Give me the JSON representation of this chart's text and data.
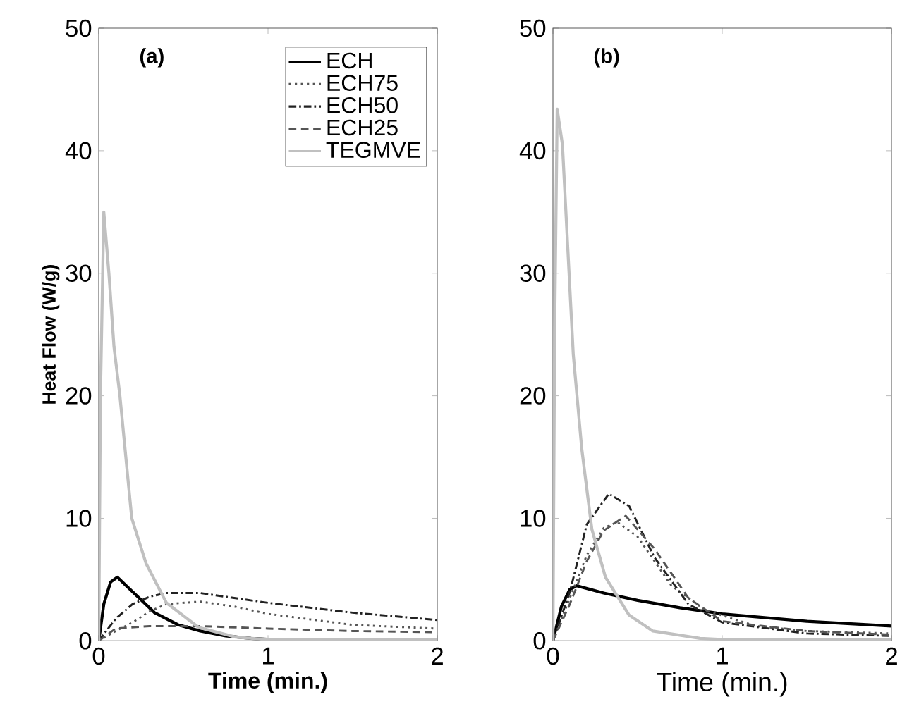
{
  "chart_data": [
    {
      "type": "line",
      "title": "(a)",
      "xlabel": "Time (min.)",
      "ylabel": "Heat Flow (W/g)",
      "xlim": [
        0,
        2
      ],
      "ylim": [
        0,
        50
      ],
      "xticks": [
        0,
        1,
        2
      ],
      "yticks": [
        0,
        10,
        20,
        30,
        40,
        50
      ],
      "legend": "top right",
      "grid": false,
      "series": [
        {
          "name": "ECH",
          "color": "#000000",
          "line_style": "solid",
          "x": [
            0,
            0.03,
            0.07,
            0.11,
            0.2,
            0.33,
            0.47,
            0.6,
            0.75,
            0.9,
            1.03,
            1.5,
            2.0
          ],
          "values": [
            0,
            3.0,
            4.8,
            5.2,
            4.0,
            2.3,
            1.3,
            0.8,
            0.4,
            0.2,
            0.1,
            0.1,
            0.1
          ]
        },
        {
          "name": "ECH75",
          "color": "#555555",
          "line_style": "dotted",
          "x": [
            0,
            0.1,
            0.2,
            0.3,
            0.4,
            0.6,
            0.8,
            1.0,
            1.5,
            2.0
          ],
          "values": [
            0,
            0.8,
            1.5,
            2.4,
            3.0,
            3.2,
            2.8,
            2.2,
            1.3,
            1.0
          ]
        },
        {
          "name": "ECH50",
          "color": "#222222",
          "line_style": "dashdot",
          "x": [
            0,
            0.1,
            0.2,
            0.3,
            0.4,
            0.6,
            0.8,
            1.0,
            1.5,
            2.0
          ],
          "values": [
            0,
            1.8,
            3.0,
            3.6,
            3.9,
            3.9,
            3.5,
            3.1,
            2.3,
            1.7
          ]
        },
        {
          "name": "ECH25",
          "color": "#555555",
          "line_style": "dashed",
          "x": [
            0,
            0.1,
            0.3,
            0.6,
            1.0,
            1.5,
            2.0
          ],
          "values": [
            0,
            1.0,
            1.2,
            1.2,
            1.0,
            0.8,
            0.7
          ]
        },
        {
          "name": "TEGMVE",
          "color": "#c0c0c0",
          "line_style": "solid",
          "x": [
            0,
            0.01,
            0.03,
            0.06,
            0.09,
            0.125,
            0.195,
            0.28,
            0.4,
            0.59,
            0.81,
            1.0,
            2.0
          ],
          "values": [
            0,
            20,
            35,
            30,
            24,
            20,
            10,
            6.3,
            3.1,
            1.1,
            0.3,
            0.1,
            0.1
          ]
        }
      ]
    },
    {
      "type": "line",
      "title": "(b)",
      "xlabel": "Time (min.)",
      "xlim": [
        0,
        2
      ],
      "ylim": [
        0,
        50
      ],
      "xticks": [
        0,
        1,
        2
      ],
      "yticks": [
        0,
        10,
        20,
        30,
        40,
        50
      ],
      "grid": false,
      "series": [
        {
          "color": "#000000",
          "line_style": "solid",
          "x": [
            0,
            0.05,
            0.1,
            0.14,
            0.3,
            0.5,
            0.75,
            1.0,
            1.5,
            2.0
          ],
          "values": [
            0,
            2.8,
            4.2,
            4.5,
            3.9,
            3.3,
            2.7,
            2.2,
            1.6,
            1.2
          ]
        },
        {
          "color": "#555555",
          "line_style": "dotted",
          "x": [
            0,
            0.1,
            0.2,
            0.3,
            0.38,
            0.5,
            0.7,
            0.9,
            1.2,
            1.5,
            2.0
          ],
          "values": [
            0,
            3.5,
            7.0,
            9.2,
            9.7,
            8.5,
            4.5,
            2.5,
            1.2,
            0.8,
            0.6
          ]
        },
        {
          "color": "#222222",
          "line_style": "dashdot",
          "x": [
            0,
            0.1,
            0.2,
            0.33,
            0.45,
            0.6,
            0.8,
            1.0,
            1.5,
            2.0
          ],
          "values": [
            0,
            4.0,
            9.5,
            12.0,
            11.0,
            6.8,
            3.0,
            1.5,
            0.6,
            0.4
          ]
        },
        {
          "color": "#555555",
          "line_style": "dashed",
          "x": [
            0,
            0.1,
            0.2,
            0.3,
            0.43,
            0.6,
            0.8,
            1.0,
            1.5,
            2.0
          ],
          "values": [
            0,
            3.0,
            6.5,
            9.0,
            10.2,
            7.5,
            3.5,
            1.6,
            0.8,
            0.5
          ]
        },
        {
          "color": "#c0c0c0",
          "line_style": "solid",
          "x": [
            0,
            0.01,
            0.025,
            0.056,
            0.12,
            0.17,
            0.23,
            0.31,
            0.45,
            0.59,
            0.87,
            1.0,
            2.0
          ],
          "values": [
            0,
            25,
            43.4,
            40.5,
            23.4,
            15.7,
            9.1,
            5.2,
            2.1,
            0.8,
            0.2,
            0.1,
            0.1
          ]
        }
      ]
    }
  ]
}
